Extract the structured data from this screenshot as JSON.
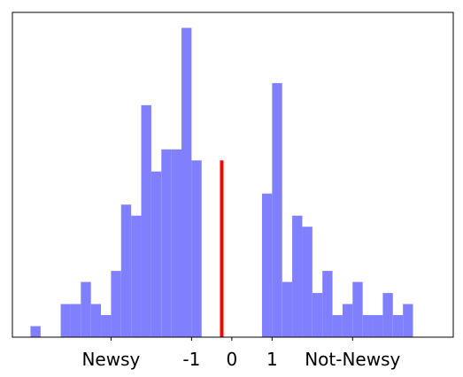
{
  "chart_data": {
    "type": "histogram",
    "bins": [
      -5,
      -4.75,
      -4.5,
      -4.25,
      -4,
      -3.75,
      -3.5,
      -3.25,
      -3,
      -2.75,
      -2.5,
      -2.25,
      -2,
      -1.75,
      -1.5,
      -1.25,
      -1,
      -0.75,
      -0.5,
      -0.25,
      0,
      0.25,
      0.5,
      0.75,
      1,
      1.25,
      1.5,
      1.75,
      2,
      2.25,
      2.5,
      2.75,
      3,
      3.25,
      3.5,
      3.75,
      4,
      4.25,
      4.5
    ],
    "values": [
      1,
      0,
      0,
      3,
      3,
      5,
      3,
      2,
      6,
      12,
      11,
      21,
      15,
      17,
      17,
      28,
      16,
      0,
      0,
      0,
      0,
      0,
      0,
      13,
      23,
      5,
      11,
      10,
      4,
      6,
      2,
      3,
      5,
      2,
      2,
      4,
      2,
      3
    ],
    "color": "#8080ff",
    "threshold": {
      "x": -0.25,
      "height": 16,
      "color": "#ff0000"
    },
    "xlim": [
      -5.45,
      5.5
    ],
    "xticks": [
      {
        "value": -3,
        "label": "Newsy"
      },
      -1,
      0,
      1,
      {
        "value": 3,
        "label": "Not-Newsy"
      }
    ],
    "ylim": [
      0,
      29.4
    ]
  }
}
